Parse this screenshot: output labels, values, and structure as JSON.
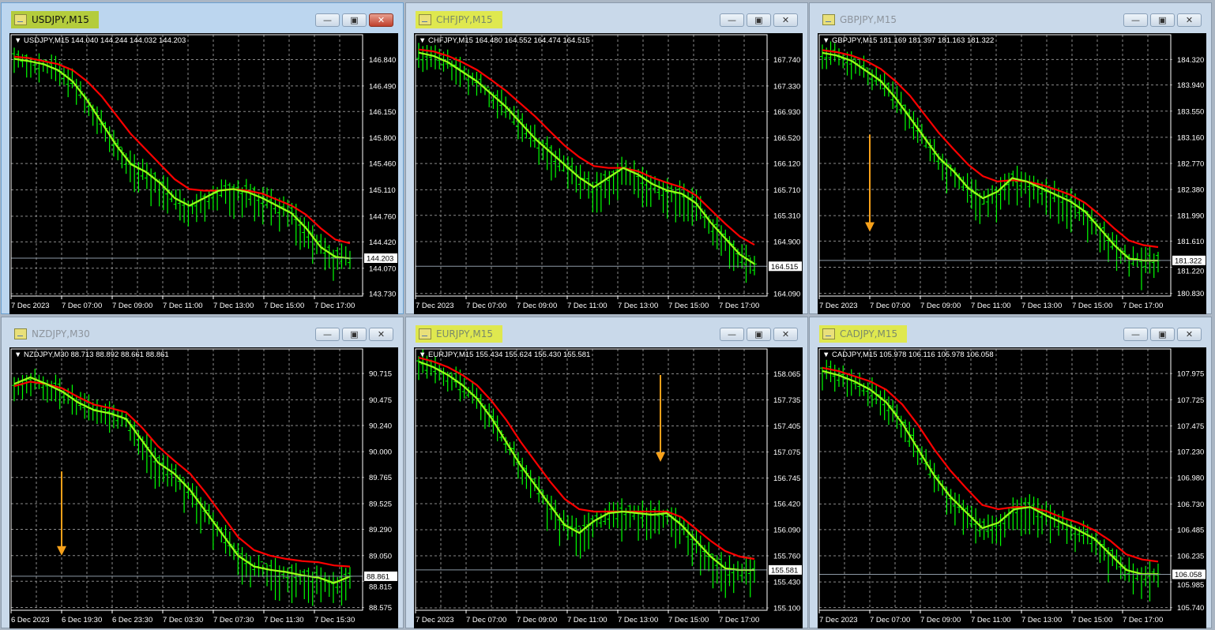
{
  "windows": [
    {
      "id": "usdjpy",
      "title": "USDJPY,M15",
      "active": true,
      "highlighted": true,
      "legend": "USDJPY,M15  144.040 144.244 144.032 144.203",
      "buttons": {
        "minimize": "minimize-icon",
        "maximize": "maximize-icon",
        "close": "close-icon"
      }
    },
    {
      "id": "chfjpy",
      "title": "CHFJPY,M15",
      "active": false,
      "highlighted": true,
      "legend": "CHFJPY,M15  164.480 164.552 164.474 164.515"
    },
    {
      "id": "gbpjpy",
      "title": "GBPJPY,M15",
      "active": false,
      "highlighted": false,
      "legend": "GBPJPY,M15  181.169 181.397 181.163 181.322"
    },
    {
      "id": "nzdjpy",
      "title": "NZDJPY,M30",
      "active": false,
      "highlighted": false,
      "legend": "NZDJPY,M30  88.713 88.892 88.661 88.861"
    },
    {
      "id": "eurjpy",
      "title": "EURJPY,M15",
      "active": false,
      "highlighted": true,
      "legend": "EURJPY,M15  155.434 155.624 155.430 155.581"
    },
    {
      "id": "cadjpy",
      "title": "CADJPY,M15",
      "active": false,
      "highlighted": true,
      "legend": "CADJPY,M15  105.978 106.116 105.978 106.058"
    }
  ],
  "colors": {
    "bars": "#00ff00",
    "fast_ma": "#9aff1a",
    "slow_ma": "#ff0000",
    "grid": "#8a8a8a",
    "arrow": "#f7a11a",
    "background": "#000000"
  },
  "chart_data": [
    {
      "type": "line",
      "symbol": "USDJPY",
      "timeframe": "M15",
      "ylim": [
        143.7,
        147.17
      ],
      "grid": true,
      "yticks": [
        "146.840",
        "146.490",
        "146.150",
        "145.800",
        "145.460",
        "145.110",
        "144.760",
        "144.420",
        "144.070",
        "143.730"
      ],
      "xticks": [
        "7 Dec 2023",
        "7 Dec 07:00",
        "7 Dec 09:00",
        "7 Dec 11:00",
        "7 Dec 13:00",
        "7 Dec 15:00",
        "7 Dec 17:00"
      ],
      "current_price": "144.203",
      "annotations": [],
      "fast_ma": [
        146.85,
        146.82,
        146.78,
        146.7,
        146.55,
        146.3,
        146.0,
        145.7,
        145.45,
        145.35,
        145.2,
        145.0,
        144.9,
        145.0,
        145.1,
        145.12,
        145.08,
        145.0,
        144.9,
        144.8,
        144.6,
        144.35,
        144.22,
        144.2
      ],
      "slow_ma": [
        146.88,
        146.86,
        146.82,
        146.78,
        146.7,
        146.55,
        146.35,
        146.1,
        145.85,
        145.65,
        145.45,
        145.25,
        145.12,
        145.1,
        145.1,
        145.12,
        145.1,
        145.06,
        144.98,
        144.9,
        144.78,
        144.6,
        144.45,
        144.4
      ]
    },
    {
      "type": "line",
      "symbol": "CHFJPY",
      "timeframe": "M15",
      "ylim": [
        164.05,
        168.13
      ],
      "grid": true,
      "yticks": [
        "167.740",
        "167.330",
        "166.930",
        "166.520",
        "166.120",
        "165.710",
        "165.310",
        "164.900",
        "164.090"
      ],
      "ytick_values": [
        167.74,
        167.33,
        166.93,
        166.52,
        166.12,
        165.71,
        165.31,
        164.9,
        164.09
      ],
      "xticks": [
        "7 Dec 2023",
        "7 Dec 07:00",
        "7 Dec 09:00",
        "7 Dec 11:00",
        "7 Dec 13:00",
        "7 Dec 15:00",
        "7 Dec 17:00"
      ],
      "current_price": "164.515",
      "annotations": [],
      "fast_ma": [
        167.85,
        167.8,
        167.7,
        167.55,
        167.4,
        167.2,
        167.0,
        166.75,
        166.5,
        166.3,
        166.1,
        165.9,
        165.75,
        165.9,
        166.05,
        165.95,
        165.8,
        165.7,
        165.65,
        165.5,
        165.2,
        164.95,
        164.7,
        164.55
      ],
      "slow_ma": [
        167.9,
        167.87,
        167.8,
        167.7,
        167.58,
        167.42,
        167.25,
        167.05,
        166.85,
        166.62,
        166.4,
        166.22,
        166.08,
        166.05,
        166.05,
        166.0,
        165.9,
        165.82,
        165.75,
        165.62,
        165.4,
        165.18,
        164.98,
        164.85
      ]
    },
    {
      "type": "line",
      "symbol": "GBPJPY",
      "timeframe": "M15",
      "ylim": [
        180.79,
        184.69
      ],
      "grid": true,
      "yticks": [
        "184.320",
        "183.940",
        "183.550",
        "183.160",
        "182.770",
        "182.380",
        "181.990",
        "181.610",
        "181.220",
        "180.830"
      ],
      "xticks": [
        "7 Dec 2023",
        "7 Dec 07:00",
        "7 Dec 09:00",
        "7 Dec 11:00",
        "7 Dec 13:00",
        "7 Dec 15:00",
        "7 Dec 17:00"
      ],
      "current_price": "181.322",
      "annotations": [
        {
          "type": "arrow-down",
          "from": 183.2,
          "to": 181.75,
          "near": "7 Dec 07:00"
        }
      ],
      "fast_ma": [
        184.42,
        184.38,
        184.3,
        184.15,
        184.0,
        183.75,
        183.45,
        183.15,
        182.85,
        182.65,
        182.4,
        182.25,
        182.35,
        182.55,
        182.5,
        182.4,
        182.3,
        182.2,
        182.05,
        181.8,
        181.55,
        181.35,
        181.32,
        181.32
      ],
      "slow_ma": [
        184.46,
        184.43,
        184.38,
        184.3,
        184.18,
        184.0,
        183.78,
        183.5,
        183.22,
        182.98,
        182.75,
        182.58,
        182.5,
        182.52,
        182.5,
        182.45,
        182.38,
        182.3,
        182.18,
        182.0,
        181.8,
        181.62,
        181.55,
        181.52
      ]
    },
    {
      "type": "line",
      "symbol": "NZDJPY",
      "timeframe": "M30",
      "ylim": [
        88.55,
        90.94
      ],
      "grid": true,
      "yticks": [
        "90.715",
        "90.475",
        "90.240",
        "90.000",
        "89.765",
        "89.525",
        "89.290",
        "89.050",
        "88.815",
        "88.575"
      ],
      "xticks": [
        "6 Dec 2023",
        "6 Dec 19:30",
        "6 Dec 23:30",
        "7 Dec 03:30",
        "7 Dec 07:30",
        "7 Dec 11:30",
        "7 Dec 15:30"
      ],
      "current_price": "88.861",
      "annotations": [
        {
          "type": "arrow-down",
          "from": 89.82,
          "to": 89.05,
          "near": "6 Dec 19:30"
        }
      ],
      "fast_ma": [
        90.62,
        90.68,
        90.62,
        90.55,
        90.45,
        90.38,
        90.35,
        90.3,
        90.1,
        89.9,
        89.8,
        89.65,
        89.45,
        89.25,
        89.05,
        88.95,
        88.92,
        88.9,
        88.87,
        88.85,
        88.8,
        88.86
      ],
      "slow_ma": [
        90.6,
        90.64,
        90.62,
        90.58,
        90.5,
        90.43,
        90.4,
        90.36,
        90.22,
        90.05,
        89.92,
        89.8,
        89.62,
        89.42,
        89.22,
        89.1,
        89.05,
        89.02,
        89.0,
        88.99,
        88.96,
        88.95
      ]
    },
    {
      "type": "line",
      "symbol": "EURJPY",
      "timeframe": "M15",
      "ylim": [
        155.07,
        158.38
      ],
      "grid": true,
      "yticks": [
        "158.065",
        "157.735",
        "157.405",
        "157.075",
        "156.745",
        "156.420",
        "156.090",
        "155.760",
        "155.430",
        "155.100"
      ],
      "xticks": [
        "7 Dec 2023",
        "7 Dec 07:00",
        "7 Dec 09:00",
        "7 Dec 11:00",
        "7 Dec 13:00",
        "7 Dec 15:00",
        "7 Dec 17:00"
      ],
      "current_price": "155.581",
      "annotations": [
        {
          "type": "arrow-down",
          "from": 158.05,
          "to": 156.95,
          "near": "7 Dec 15:00"
        }
      ],
      "fast_ma": [
        158.22,
        158.15,
        158.05,
        157.92,
        157.75,
        157.5,
        157.2,
        156.9,
        156.65,
        156.4,
        156.15,
        156.05,
        156.2,
        156.3,
        156.32,
        156.3,
        156.28,
        156.3,
        156.15,
        155.95,
        155.75,
        155.6,
        155.58,
        155.58
      ],
      "slow_ma": [
        158.27,
        158.22,
        158.15,
        158.05,
        157.92,
        157.72,
        157.48,
        157.2,
        156.95,
        156.7,
        156.48,
        156.35,
        156.32,
        156.32,
        156.32,
        156.32,
        156.32,
        156.32,
        156.25,
        156.1,
        155.95,
        155.82,
        155.75,
        155.72
      ]
    },
    {
      "type": "line",
      "symbol": "CADJPY",
      "timeframe": "M15",
      "ylim": [
        105.715,
        108.21
      ],
      "grid": true,
      "yticks": [
        "107.975",
        "107.725",
        "107.475",
        "107.230",
        "106.980",
        "106.730",
        "106.485",
        "106.235",
        "105.985",
        "105.740"
      ],
      "xticks": [
        "7 Dec 2023",
        "7 Dec 07:00",
        "7 Dec 09:00",
        "7 Dec 11:00",
        "7 Dec 13:00",
        "7 Dec 15:00",
        "7 Dec 17:00"
      ],
      "current_price": "106.058",
      "annotations": [],
      "fast_ma": [
        108.0,
        107.96,
        107.9,
        107.82,
        107.7,
        107.5,
        107.25,
        107.0,
        106.8,
        106.65,
        106.5,
        106.55,
        106.68,
        106.7,
        106.62,
        106.55,
        106.48,
        106.4,
        106.25,
        106.1,
        106.06,
        106.06
      ],
      "slow_ma": [
        108.03,
        108.0,
        107.95,
        107.9,
        107.82,
        107.68,
        107.48,
        107.25,
        107.05,
        106.88,
        106.72,
        106.68,
        106.7,
        106.7,
        106.66,
        106.6,
        106.55,
        106.48,
        106.38,
        106.25,
        106.2,
        106.18
      ]
    }
  ]
}
